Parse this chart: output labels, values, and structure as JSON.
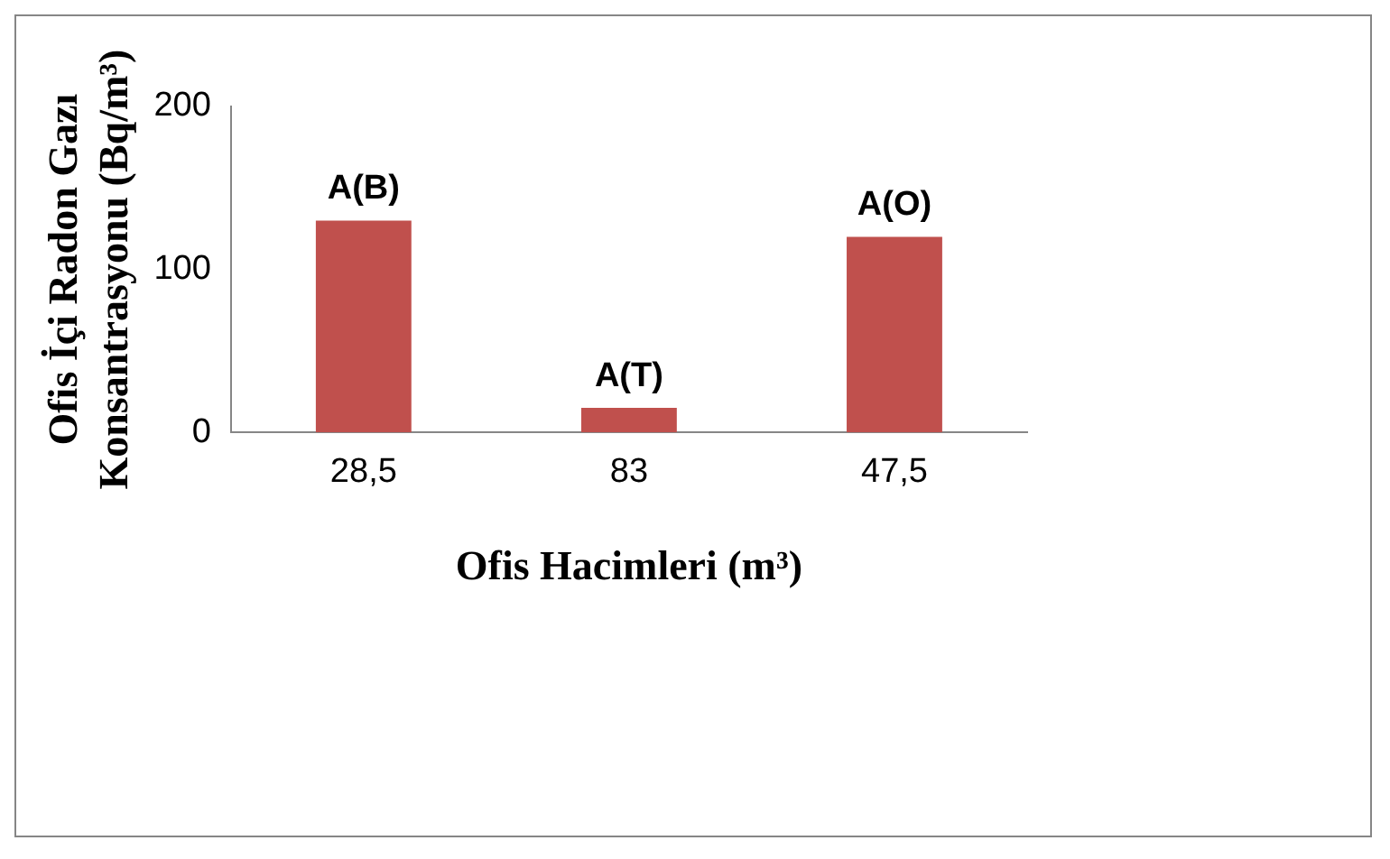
{
  "chart_data": {
    "type": "bar",
    "categories": [
      "28,5",
      "83",
      "47,5"
    ],
    "values": [
      130,
      15,
      120
    ],
    "color": "#c0504d",
    "xlabel": "Ofis Hacimleri (m³)",
    "ylabel": "Ofis İçi Radon Gazı Konsantrasyonu (Bq/m³)",
    "ylim": [
      0,
      200
    ],
    "yticks": [
      0,
      100,
      200
    ],
    "grid": false,
    "legend": false,
    "annotations": [
      {
        "text": "A(B)",
        "x": "28,5",
        "y": 130
      },
      {
        "text": "A(T)",
        "x": "83",
        "y": 15
      },
      {
        "text": "A(O)",
        "x": "47,5",
        "y": 120
      }
    ]
  }
}
